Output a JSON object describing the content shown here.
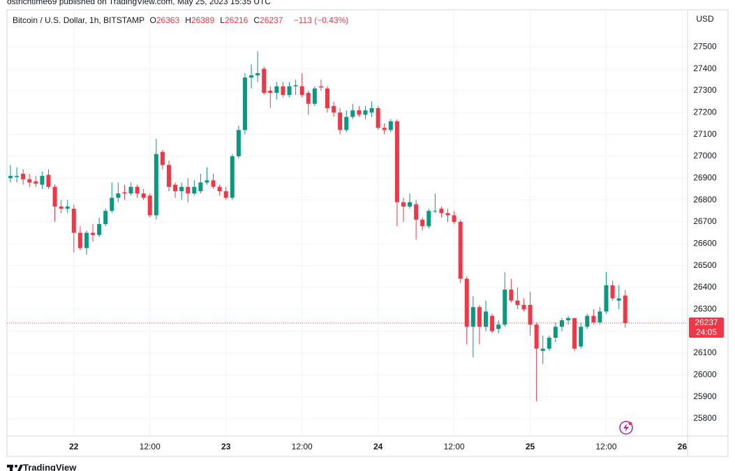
{
  "chart_data": {
    "type": "candlestick",
    "published": "ostrichtime69 published on TradingView.com, May 25, 2023 15:35 UTC",
    "title": "Bitcoin / U.S. Dollar, 1h, BITSTAMP",
    "legend": [
      {
        "label": "O",
        "value": 26363
      },
      {
        "label": "H",
        "value": 26389
      },
      {
        "label": "L",
        "value": 26216
      },
      {
        "label": "C",
        "value": 26237
      }
    ],
    "change": "−113 (−0.43%)",
    "currency": "USD",
    "last_price": 26237,
    "countdown": "24:05",
    "brand": "TradingView",
    "up_color": "#089981",
    "down_color": "#f23645",
    "categories": [
      null,
      null,
      null,
      null,
      null,
      null,
      null,
      null,
      null,
      null,
      "22",
      null,
      null,
      null,
      null,
      null,
      null,
      null,
      null,
      null,
      null,
      null,
      "12:00",
      null,
      null,
      null,
      null,
      null,
      null,
      null,
      null,
      null,
      null,
      null,
      "23",
      null,
      null,
      null,
      null,
      null,
      null,
      null,
      null,
      null,
      null,
      null,
      "12:00",
      null,
      null,
      null,
      null,
      null,
      null,
      null,
      null,
      null,
      null,
      null,
      "24",
      null,
      null,
      null,
      null,
      null,
      null,
      null,
      null,
      null,
      null,
      null,
      "12:00",
      null,
      null,
      null,
      null,
      null,
      null,
      null,
      null,
      null,
      null,
      null,
      "25",
      null,
      null,
      null,
      null,
      null,
      null,
      null,
      null,
      null,
      null,
      null,
      "12:00",
      null,
      null,
      null,
      null,
      null,
      null,
      null,
      null,
      null,
      null,
      null,
      "26"
    ],
    "open": [
      26900,
      26905,
      26920,
      26895,
      26885,
      26870,
      26915,
      26860,
      26770,
      26760,
      26760,
      26650,
      26580,
      26650,
      26640,
      26690,
      26750,
      26810,
      26835,
      26830,
      26860,
      26830,
      26820,
      26730,
      27020,
      26960,
      26870,
      26840,
      26860,
      26830,
      26840,
      26880,
      26890,
      26860,
      26840,
      26810,
      27000,
      27120,
      27360,
      27370,
      27400,
      27300,
      27290,
      27320,
      27280,
      27320,
      27320,
      27290,
      27240,
      27320,
      27310,
      27230,
      27200,
      27120,
      27180,
      27210,
      27190,
      27200,
      27220,
      27130,
      27120,
      27160,
      26790,
      26770,
      26780,
      26710,
      26680,
      26750,
      26760,
      26740,
      26730,
      26700,
      26440,
      26220,
      26310,
      26220,
      26270,
      26210,
      26230,
      26390,
      26340,
      26320,
      26320,
      26230,
      26110,
      26120,
      26170,
      26220,
      26250,
      26260,
      26130,
      26220,
      26270,
      26240,
      26290,
      26410,
      26340,
      26363,
      null,
      null,
      null,
      null,
      null,
      null,
      null,
      null,
      null
    ],
    "high": [
      26960,
      26950,
      26940,
      26920,
      26910,
      26930,
      26940,
      26870,
      26800,
      26800,
      26780,
      26680,
      26660,
      26690,
      26720,
      26760,
      26880,
      26880,
      26870,
      26880,
      26870,
      26850,
      26830,
      27080,
      27030,
      26980,
      26880,
      26880,
      26900,
      26890,
      26920,
      26950,
      26920,
      26870,
      26860,
      27010,
      27140,
      27380,
      27420,
      27480,
      27410,
      27320,
      27340,
      27340,
      27340,
      27350,
      27380,
      27300,
      27320,
      27350,
      27320,
      27250,
      27220,
      27210,
      27240,
      27230,
      27230,
      27250,
      27230,
      27150,
      27170,
      27170,
      26810,
      26830,
      26800,
      26720,
      26760,
      26830,
      26770,
      26760,
      26750,
      26710,
      26450,
      26360,
      26320,
      26340,
      26280,
      26250,
      26470,
      26440,
      26400,
      26350,
      26380,
      26240,
      26180,
      26180,
      26240,
      26260,
      26270,
      26260,
      26240,
      26280,
      26300,
      26310,
      26470,
      26430,
      26410,
      26389,
      null,
      null,
      null,
      null,
      null,
      null,
      null,
      null,
      null
    ],
    "low": [
      26880,
      26880,
      26870,
      26860,
      26860,
      26850,
      26850,
      26700,
      26740,
      26740,
      26560,
      26570,
      26550,
      26610,
      26630,
      26680,
      26740,
      26790,
      26800,
      26820,
      26810,
      26800,
      26720,
      26710,
      26940,
      26840,
      26810,
      26800,
      26790,
      26820,
      26830,
      26870,
      26850,
      26820,
      26800,
      26800,
      26990,
      27100,
      27310,
      27340,
      27280,
      27220,
      27260,
      27270,
      27270,
      27280,
      27270,
      27190,
      27230,
      27300,
      27200,
      27180,
      27100,
      27110,
      27170,
      27180,
      27170,
      27180,
      27120,
      27100,
      27110,
      26680,
      26700,
      26760,
      26620,
      26660,
      26670,
      26740,
      26720,
      26700,
      26690,
      26420,
      26140,
      26080,
      26140,
      26200,
      26190,
      26190,
      26220,
      26330,
      26300,
      26290,
      26180,
      25880,
      26050,
      26110,
      26150,
      26200,
      26230,
      26110,
      26120,
      26210,
      26230,
      26230,
      26280,
      26340,
      26300,
      26216,
      null,
      null,
      null,
      null,
      null,
      null,
      null,
      null,
      null
    ],
    "close": [
      26910,
      26910,
      26895,
      26880,
      26875,
      26910,
      26860,
      26770,
      26760,
      26770,
      26650,
      26580,
      26650,
      26640,
      26690,
      26750,
      26810,
      26830,
      26830,
      26860,
      26830,
      26810,
      26730,
      27010,
      26960,
      26860,
      26840,
      26860,
      26830,
      26860,
      26880,
      26890,
      26860,
      26840,
      26810,
      27000,
      27120,
      27360,
      27370,
      27380,
      27290,
      27290,
      27320,
      27280,
      27320,
      27325,
      27280,
      27240,
      27310,
      27315,
      27220,
      27200,
      27120,
      27180,
      27210,
      27190,
      27210,
      27220,
      27130,
      27120,
      27160,
      26790,
      26770,
      26790,
      26710,
      26680,
      26750,
      26750,
      26740,
      26730,
      26700,
      26440,
      26220,
      26310,
      26220,
      26290,
      26200,
      26230,
      26390,
      26340,
      26320,
      26300,
      26230,
      26120,
      26120,
      26170,
      26220,
      26250,
      26260,
      26120,
      26220,
      26270,
      26240,
      26290,
      26410,
      26350,
      26350,
      26237,
      null,
      null,
      null,
      null,
      null,
      null,
      null,
      null,
      null
    ],
    "ylim": [
      25720,
      27670
    ],
    "yticks": [
      25800,
      25900,
      26000,
      26100,
      26200,
      26300,
      26400,
      26500,
      26600,
      26700,
      26800,
      26900,
      27000,
      27100,
      27200,
      27300,
      27400,
      27500
    ],
    "grid": true
  }
}
